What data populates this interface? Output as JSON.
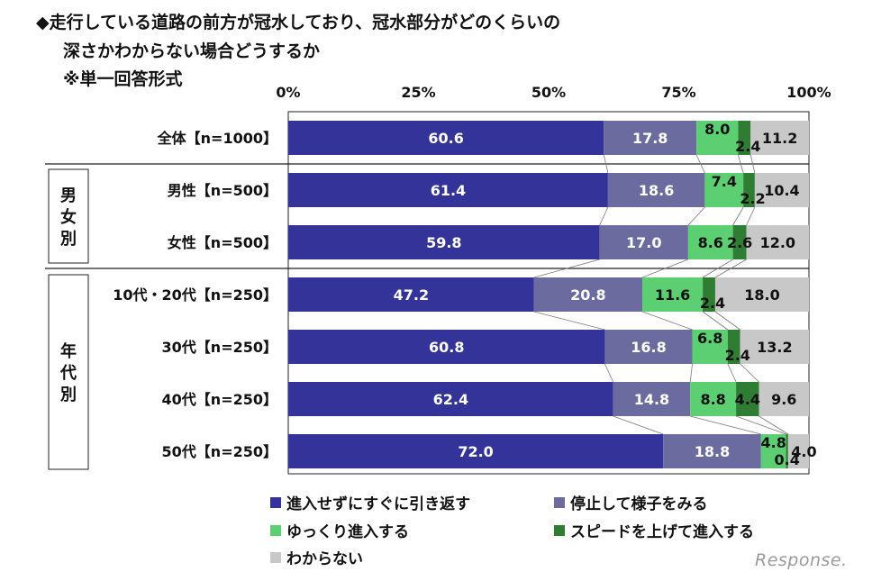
{
  "title": {
    "line1": "◆走行している道路の前方が冠水しており、冠水部分がどのくらいの",
    "line2": "深さかわからない場合どうするか",
    "line3": "※単一回答形式"
  },
  "watermark": "Response.",
  "chart_data": {
    "type": "bar",
    "orientation": "horizontal",
    "stacked": "percent",
    "xlim": [
      0,
      100
    ],
    "x_ticks": [
      "0%",
      "25%",
      "50%",
      "75%",
      "100%"
    ],
    "categories": [
      "全体【n=1000】",
      "男性【n=500】",
      "女性【n=500】",
      "10代・20代【n=250】",
      "30代【n=250】",
      "40代【n=250】",
      "50代【n=250】"
    ],
    "groups": [
      {
        "label": "男女別",
        "rows": [
          1,
          2
        ]
      },
      {
        "label": "年代別",
        "rows": [
          3,
          4,
          5,
          6
        ]
      }
    ],
    "series": [
      {
        "name": "進入せずにすぐに引き返す",
        "color": "#333399",
        "values": [
          60.6,
          61.4,
          59.8,
          47.2,
          60.8,
          62.4,
          72.0
        ]
      },
      {
        "name": "停止して様子をみる",
        "color": "#6b6b9f",
        "values": [
          17.8,
          18.6,
          17.0,
          20.8,
          16.8,
          14.8,
          18.8
        ]
      },
      {
        "name": "ゆっくり進入する",
        "color": "#5ccf72",
        "values": [
          8.0,
          7.4,
          8.6,
          11.6,
          6.8,
          8.8,
          4.8
        ]
      },
      {
        "name": "スピードを上げて進入する",
        "color": "#2f7d32",
        "values": [
          2.4,
          2.2,
          2.6,
          2.4,
          2.4,
          4.4,
          0.4
        ]
      },
      {
        "name": "わからない",
        "color": "#c8c8c8",
        "values": [
          11.2,
          10.4,
          12.0,
          18.0,
          13.2,
          9.6,
          4.0
        ]
      }
    ],
    "value_labels": [
      [
        "60.6",
        "17.8",
        "8.0",
        "2.4",
        "11.2"
      ],
      [
        "61.4",
        "18.6",
        "7.4",
        "2.2",
        "10.4"
      ],
      [
        "59.8",
        "17.0",
        "8.6",
        "2.6",
        "12.0"
      ],
      [
        "47.2",
        "20.8",
        "11.6",
        "2.4",
        "18.0"
      ],
      [
        "60.8",
        "16.8",
        "6.8",
        "2.4",
        "13.2"
      ],
      [
        "62.4",
        "14.8",
        "8.8",
        "4.4",
        "9.6"
      ],
      [
        "72.0",
        "18.8",
        "4.8",
        "0.4",
        "4.0"
      ]
    ],
    "legend_position": "bottom",
    "grid": false
  }
}
